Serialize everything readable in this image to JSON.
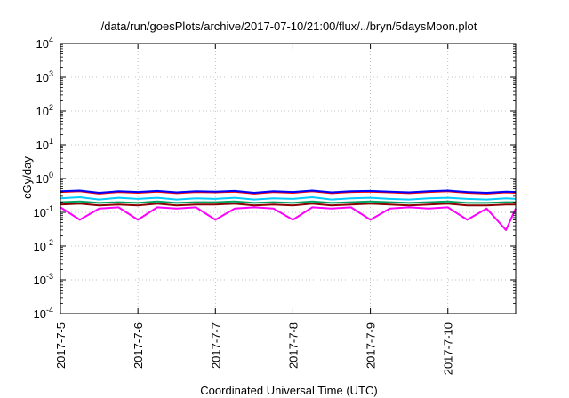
{
  "chart_data": {
    "type": "line",
    "title": "/data/run/goesPlots/archive/2017-07-10/21:00/flux/../bryn/5daysMoon.plot",
    "xlabel": "Coordinated Universal Time (UTC)",
    "ylabel": "cGy/day",
    "x_axis": {
      "range": [
        "2017-07-05T00:00",
        "2017-07-10T21:00"
      ],
      "tick_labels": [
        "2017-7-5",
        "2017-7-6",
        "2017-7-7",
        "2017-7-8",
        "2017-7-9",
        "2017-7-10"
      ],
      "tick_dates": [
        "2017-07-05T00:00",
        "2017-07-06T00:00",
        "2017-07-07T00:00",
        "2017-07-08T00:00",
        "2017-07-09T00:00",
        "2017-07-10T00:00"
      ]
    },
    "y_axis": {
      "scale": "log",
      "ylim": [
        0.0001,
        10000
      ],
      "tick_labels": [
        {
          "base": "10",
          "exp": "4"
        },
        {
          "base": "10",
          "exp": "3"
        },
        {
          "base": "10",
          "exp": "2"
        },
        {
          "base": "10",
          "exp": "1"
        },
        {
          "base": "10",
          "exp": "0"
        },
        {
          "base": "10",
          "exp": "-1"
        },
        {
          "base": "10",
          "exp": "-2"
        },
        {
          "base": "10",
          "exp": "-3"
        },
        {
          "base": "10",
          "exp": "-4"
        }
      ],
      "tick_values": [
        10000,
        1000,
        100,
        10,
        1,
        0.1,
        0.01,
        0.001,
        0.0001
      ]
    },
    "grid": true,
    "legend": "none",
    "x": [
      "2017-07-05T00:00",
      "2017-07-05T06:00",
      "2017-07-05T12:00",
      "2017-07-05T18:00",
      "2017-07-06T00:00",
      "2017-07-06T06:00",
      "2017-07-06T12:00",
      "2017-07-06T18:00",
      "2017-07-07T00:00",
      "2017-07-07T06:00",
      "2017-07-07T12:00",
      "2017-07-07T18:00",
      "2017-07-08T00:00",
      "2017-07-08T06:00",
      "2017-07-08T12:00",
      "2017-07-08T18:00",
      "2017-07-09T00:00",
      "2017-07-09T06:00",
      "2017-07-09T12:00",
      "2017-07-09T18:00",
      "2017-07-10T00:00",
      "2017-07-10T06:00",
      "2017-07-10T12:00",
      "2017-07-10T18:00",
      "2017-07-10T21:00"
    ],
    "series": [
      {
        "color": "#ff0000",
        "values": [
          0.4,
          0.42,
          0.36,
          0.4,
          0.38,
          0.41,
          0.37,
          0.4,
          0.39,
          0.41,
          0.36,
          0.4,
          0.38,
          0.42,
          0.37,
          0.4,
          0.41,
          0.39,
          0.37,
          0.4,
          0.42,
          0.38,
          0.36,
          0.39,
          0.38
        ]
      },
      {
        "color": "#0000ff",
        "values": [
          0.42,
          0.44,
          0.38,
          0.42,
          0.4,
          0.43,
          0.39,
          0.42,
          0.41,
          0.43,
          0.38,
          0.42,
          0.4,
          0.44,
          0.39,
          0.42,
          0.43,
          0.41,
          0.39,
          0.42,
          0.44,
          0.4,
          0.38,
          0.41,
          0.4
        ]
      },
      {
        "color": "#00ccff",
        "values": [
          0.26,
          0.28,
          0.24,
          0.27,
          0.25,
          0.27,
          0.24,
          0.26,
          0.25,
          0.27,
          0.24,
          0.26,
          0.25,
          0.28,
          0.24,
          0.26,
          0.27,
          0.25,
          0.24,
          0.26,
          0.27,
          0.25,
          0.24,
          0.26,
          0.25
        ]
      },
      {
        "color": "#00a060",
        "values": [
          0.2,
          0.21,
          0.19,
          0.2,
          0.19,
          0.21,
          0.19,
          0.2,
          0.2,
          0.21,
          0.19,
          0.2,
          0.19,
          0.21,
          0.19,
          0.2,
          0.21,
          0.2,
          0.19,
          0.2,
          0.21,
          0.19,
          0.19,
          0.2,
          0.2
        ]
      },
      {
        "color": "#8b0000",
        "values": [
          0.17,
          0.18,
          0.16,
          0.17,
          0.16,
          0.18,
          0.16,
          0.17,
          0.17,
          0.18,
          0.16,
          0.17,
          0.16,
          0.18,
          0.16,
          0.17,
          0.18,
          0.17,
          0.16,
          0.17,
          0.18,
          0.16,
          0.16,
          0.17,
          0.17
        ]
      },
      {
        "color": "#ff00ff",
        "values": [
          0.14,
          0.06,
          0.13,
          0.14,
          0.06,
          0.14,
          0.13,
          0.14,
          0.06,
          0.13,
          0.14,
          0.13,
          0.06,
          0.14,
          0.13,
          0.14,
          0.06,
          0.13,
          0.14,
          0.13,
          0.14,
          0.06,
          0.13,
          0.03,
          0.13
        ]
      }
    ]
  }
}
